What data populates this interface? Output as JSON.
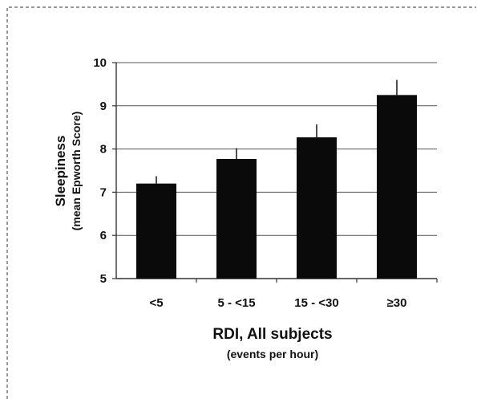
{
  "chart_data": {
    "type": "bar",
    "categories": [
      "<5",
      "5 - <15",
      "15 - <30",
      "≥30"
    ],
    "values": [
      7.2,
      7.77,
      8.27,
      9.25
    ],
    "error_upper": [
      7.37,
      8.02,
      8.57,
      9.6
    ],
    "ylim": [
      5,
      10
    ],
    "yticks": [
      5,
      6,
      7,
      8,
      9,
      10
    ],
    "grid": true,
    "ylabel": "Sleepiness",
    "ylabel_sub": "(mean Epworth Score)",
    "xlabel": "RDI, All subjects",
    "xlabel_sub": "(events per hour)",
    "colors": {
      "bar": "#0a0a0a",
      "grid": "#555555",
      "border": "#333333"
    }
  }
}
